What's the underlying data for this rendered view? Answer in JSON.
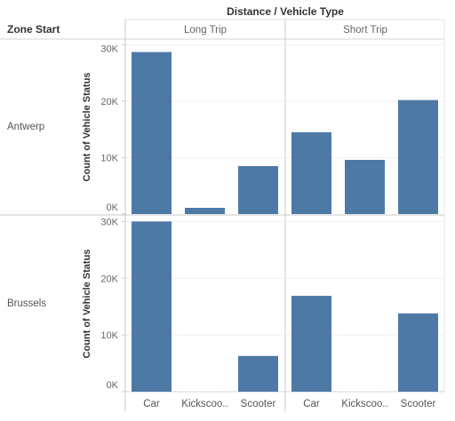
{
  "chart_data": {
    "type": "bar",
    "column_field_header": "Distance / Vehicle Type",
    "row_field_header": "Zone Start",
    "columns": [
      "Long Trip",
      "Short Trip"
    ],
    "rows": [
      "Antwerp",
      "Brussels"
    ],
    "categories": [
      "Car",
      "Kickscooter",
      "Scooter"
    ],
    "category_labels": [
      "Car",
      "Kickscoo..",
      "Scooter"
    ],
    "ylabel": "Count of Vehicle Status",
    "yticks": [
      0,
      10000,
      20000,
      30000
    ],
    "ytick_labels": [
      "0K",
      "10K",
      "20K",
      "30K"
    ],
    "ylim": [
      0,
      31000
    ],
    "bar_color": "#4e79a7",
    "cells": [
      {
        "row": "Antwerp",
        "column": "Long Trip",
        "values": [
          28700,
          1100,
          8500
        ]
      },
      {
        "row": "Antwerp",
        "column": "Short Trip",
        "values": [
          14500,
          9600,
          20200
        ]
      },
      {
        "row": "Brussels",
        "column": "Long Trip",
        "values": [
          30000,
          0,
          6300
        ]
      },
      {
        "row": "Brussels",
        "column": "Short Trip",
        "values": [
          16900,
          0,
          13800
        ]
      }
    ]
  }
}
